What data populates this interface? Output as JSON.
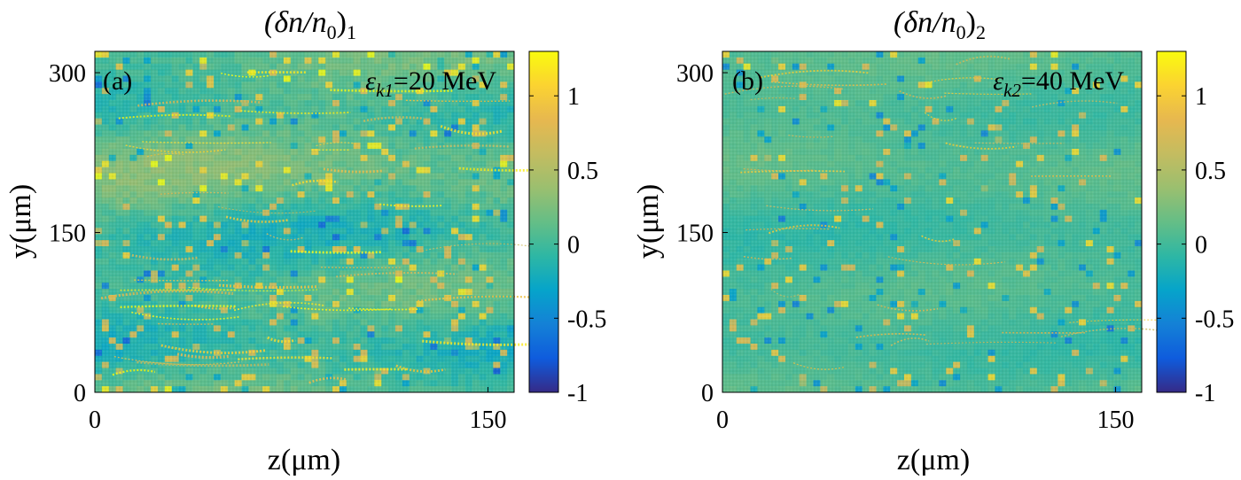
{
  "chart_data": [
    {
      "type": "heatmap",
      "title_base": "(δn/n",
      "title_sub0": "0",
      "title_close": ")",
      "title_sub": "1",
      "panel_label": "(a)",
      "annotation_sym": "ε",
      "annotation_sub": "k1",
      "annotation_val": "=20 MeV",
      "xlabel": "z(μm)",
      "ylabel": "y(μm)",
      "xlim": [
        0,
        160
      ],
      "ylim": [
        0,
        320
      ],
      "x_ticks": [
        0,
        150
      ],
      "y_ticks": [
        0,
        150,
        300
      ],
      "colorbar": {
        "min": -1,
        "max": 1.3,
        "ticks": [
          "-1",
          "-0.5",
          "0",
          "0.5",
          "1"
        ],
        "tick_values": [
          -1,
          -0.5,
          0,
          0.5,
          1
        ]
      },
      "colormap": "parula",
      "base_value": 0.05,
      "structure": "strong horizontal bands with bright streaks"
    },
    {
      "type": "heatmap",
      "title_base": "(δn/n",
      "title_sub0": "0",
      "title_close": ")",
      "title_sub": "2",
      "panel_label": "(b)",
      "annotation_sym": "ε",
      "annotation_sub": "k2",
      "annotation_val": "=40 MeV",
      "xlabel": "z(μm)",
      "ylabel": "y(μm)",
      "xlim": [
        0,
        160
      ],
      "ylim": [
        0,
        320
      ],
      "x_ticks": [
        0,
        150
      ],
      "y_ticks": [
        0,
        150,
        300
      ],
      "colorbar": {
        "min": -1,
        "max": 1.3,
        "ticks": [
          "-1",
          "-0.5",
          "0",
          "0.5",
          "1"
        ],
        "tick_values": [
          -1,
          -0.5,
          0,
          0.5,
          1
        ]
      },
      "colormap": "parula",
      "base_value": 0.05,
      "structure": "weak diffuse filaments"
    }
  ]
}
